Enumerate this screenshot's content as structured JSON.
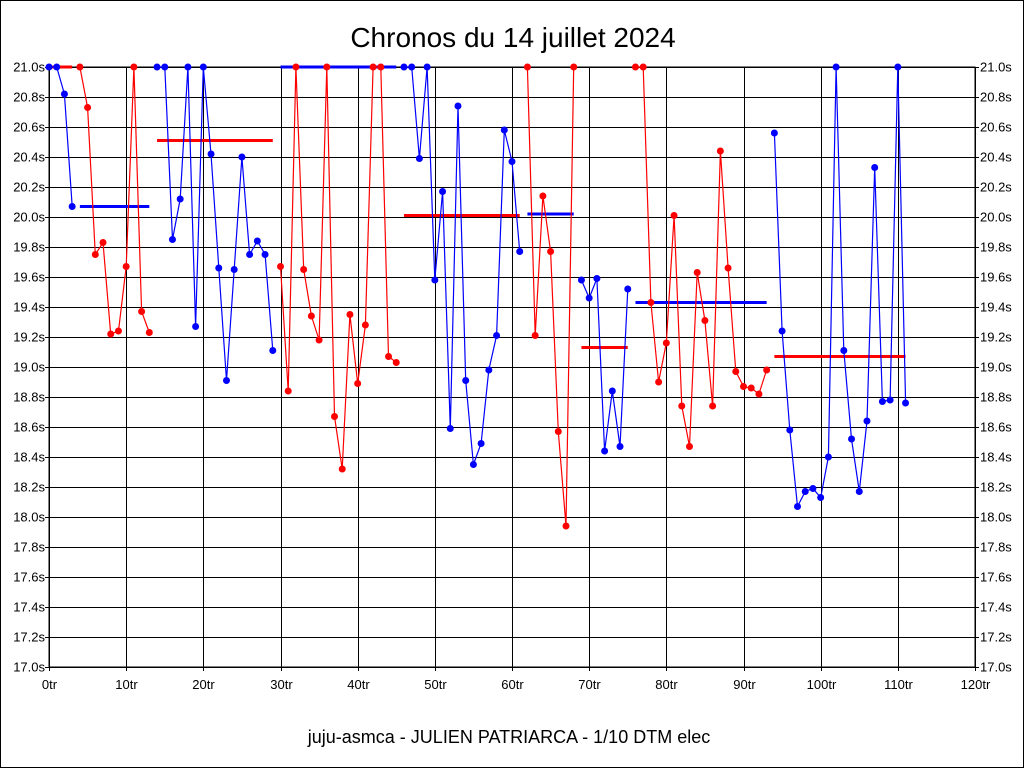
{
  "chart_data": {
    "type": "line",
    "title": "Chronos du 14 juillet 2024",
    "footer": "juju-asmca - JULIEN PATRIARCA - 1/10 DTM elec",
    "xlabel": "",
    "ylabel": "",
    "xlim": [
      0,
      120
    ],
    "ylim": [
      17.0,
      21.0
    ],
    "grid": true,
    "x_ticks": [
      0,
      10,
      20,
      30,
      40,
      50,
      60,
      70,
      80,
      90,
      100,
      110,
      120
    ],
    "x_tick_labels": [
      "0tr",
      "10tr",
      "20tr",
      "30tr",
      "40tr",
      "50tr",
      "60tr",
      "70tr",
      "80tr",
      "90tr",
      "100tr",
      "110tr",
      "120tr"
    ],
    "y_ticks": [
      17.0,
      17.2,
      17.4,
      17.6,
      17.8,
      18.0,
      18.2,
      18.4,
      18.6,
      18.8,
      19.0,
      19.2,
      19.4,
      19.6,
      19.8,
      20.0,
      20.2,
      20.4,
      20.6,
      20.8,
      21.0
    ],
    "y_tick_labels": [
      "17.0s",
      "17.2s",
      "17.4s",
      "17.6s",
      "17.8s",
      "18.0s",
      "18.2s",
      "18.4s",
      "18.6s",
      "18.8s",
      "19.0s",
      "19.2s",
      "19.4s",
      "19.6s",
      "19.8s",
      "20.0s",
      "20.2s",
      "20.4s",
      "20.6s",
      "20.8s",
      "21.0s"
    ],
    "colors": {
      "blue": "#0000ff",
      "red": "#ff0000"
    },
    "series": [
      {
        "color": "blue",
        "start_lap": 0,
        "values": [
          21.0,
          21.0,
          20.82,
          20.07
        ]
      },
      {
        "color": "red",
        "start_lap": 4,
        "values": [
          21.0,
          20.73,
          19.75,
          19.83,
          19.22,
          19.24,
          19.67,
          21.0,
          19.37,
          19.23
        ]
      },
      {
        "color": "blue",
        "start_lap": 14,
        "values": [
          21.0,
          21.0,
          19.85,
          20.12,
          21.0,
          19.27,
          21.0,
          20.42,
          19.66,
          18.91,
          19.65,
          20.4,
          19.75,
          19.84,
          19.75,
          19.11
        ]
      },
      {
        "color": "red",
        "start_lap": 30,
        "values": [
          19.67,
          18.84,
          21.0,
          19.65,
          19.34,
          19.18,
          21.0,
          18.67,
          18.32,
          19.35,
          18.89,
          19.28,
          21.0,
          21.0,
          19.07,
          19.03
        ]
      },
      {
        "color": "blue",
        "start_lap": 46,
        "values": [
          21.0,
          21.0,
          20.39,
          21.0,
          19.58,
          20.17,
          18.59,
          20.74,
          18.91,
          18.35,
          18.49,
          18.98,
          19.21,
          20.58,
          20.37,
          19.77
        ]
      },
      {
        "color": "red",
        "start_lap": 62,
        "values": [
          21.0,
          19.21,
          20.14,
          19.77,
          18.57,
          17.94,
          21.0
        ]
      },
      {
        "color": "blue",
        "start_lap": 69,
        "values": [
          19.58,
          19.46,
          19.59,
          18.44,
          18.84,
          18.47,
          19.52
        ]
      },
      {
        "color": "red",
        "start_lap": 76,
        "values": [
          21.0,
          21.0,
          19.43,
          18.9,
          19.16,
          20.01,
          18.74,
          18.47,
          19.63,
          19.31,
          18.74,
          20.44,
          19.66,
          18.97,
          18.87,
          18.86,
          18.82,
          18.98
        ]
      },
      {
        "color": "blue",
        "start_lap": 94,
        "values": [
          20.56,
          19.24,
          18.58,
          18.07,
          18.17,
          18.19,
          18.13,
          18.4,
          21.0,
          19.11,
          18.52,
          18.17,
          18.64,
          20.33,
          18.77,
          18.78,
          21.0,
          18.76
        ]
      }
    ],
    "average_lines": [
      {
        "color": "red",
        "value": 21.0,
        "from_lap": 0,
        "to_lap": 3
      },
      {
        "color": "blue",
        "value": 20.07,
        "from_lap": 4,
        "to_lap": 13
      },
      {
        "color": "red",
        "value": 20.51,
        "from_lap": 14,
        "to_lap": 29
      },
      {
        "color": "blue",
        "value": 21.0,
        "from_lap": 30,
        "to_lap": 45
      },
      {
        "color": "red",
        "value": 20.01,
        "from_lap": 46,
        "to_lap": 61
      },
      {
        "color": "blue",
        "value": 20.02,
        "from_lap": 62,
        "to_lap": 68
      },
      {
        "color": "red",
        "value": 19.13,
        "from_lap": 69,
        "to_lap": 75
      },
      {
        "color": "blue",
        "value": 19.43,
        "from_lap": 76,
        "to_lap": 93
      },
      {
        "color": "red",
        "value": 19.07,
        "from_lap": 94,
        "to_lap": 111
      }
    ]
  }
}
